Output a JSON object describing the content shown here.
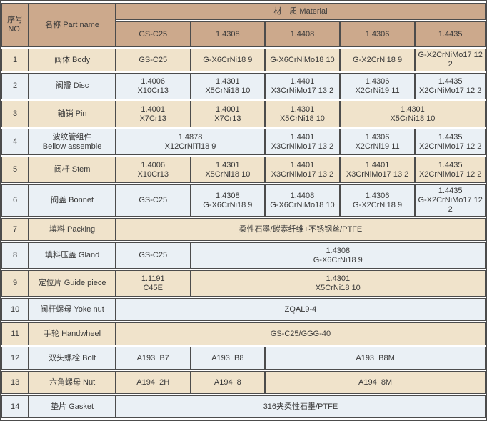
{
  "table": {
    "colors": {
      "header_bg": "#cca98c",
      "row_cream": "#f0e3cb",
      "row_light": "#eaf0f5",
      "border": "#4c4c4c",
      "text": "#3a3a3a"
    },
    "header": {
      "no_label": "序号NO.",
      "name_label": "名称 Part name",
      "material_label": "材　质 Material",
      "grades": [
        "GS-C25",
        "1.4308",
        "1.4408",
        "1.4306",
        "1.4435"
      ]
    },
    "rows": [
      {
        "no": "1",
        "name": "阀体 Body",
        "cells": [
          {
            "text": "GS-C25",
            "span": 1
          },
          {
            "text": "G-X6CrNi18 9",
            "span": 1
          },
          {
            "text": "G-X6CrNiMo18 10",
            "span": 1
          },
          {
            "text": "G-X2CrNi18 9",
            "span": 1
          },
          {
            "text": "G-X2CrNiMo17 12 2",
            "span": 1
          }
        ]
      },
      {
        "no": "2",
        "name": "阀瓣 Disc",
        "cells": [
          {
            "text": "1.4006\nX10Cr13",
            "span": 1
          },
          {
            "text": "1.4301\nX5CrNi18 10",
            "span": 1
          },
          {
            "text": "1.4401\nX3CrNiMo17 13 2",
            "span": 1
          },
          {
            "text": "1.4306\nX2CrNi19 11",
            "span": 1
          },
          {
            "text": "1.4435\nX2CrNiMo17 12 2",
            "span": 1
          }
        ]
      },
      {
        "no": "3",
        "name": "轴销 Pin",
        "cells": [
          {
            "text": "1.4001\nX7Cr13",
            "span": 1
          },
          {
            "text": "1.4001\nX7Cr13",
            "span": 1
          },
          {
            "text": "1.4301\nX5CrNi18 10",
            "span": 1
          },
          {
            "text": "1.4301\nX5CrNi18 10",
            "span": 2
          }
        ]
      },
      {
        "no": "4",
        "name": "波纹管组件\nBellow assemble",
        "cells": [
          {
            "text": "1.4878\nX12CrNiTi18 9",
            "span": 2
          },
          {
            "text": "1.4401\nX3CrNiMo17 13 2",
            "span": 1
          },
          {
            "text": "1.4306\nX2CrNi19 11",
            "span": 1
          },
          {
            "text": "1.4435\nX2CrNiMo17 12 2",
            "span": 1
          }
        ]
      },
      {
        "no": "5",
        "name": "阀杆 Stem",
        "cells": [
          {
            "text": "1.4006\nX10Cr13",
            "span": 1
          },
          {
            "text": "1.4301\nX5CrNi18 10",
            "span": 1
          },
          {
            "text": "1.4401\nX3CrNiMo17 13 2",
            "span": 1
          },
          {
            "text": "1.4401\nX3CrNiMo17 13 2",
            "span": 1
          },
          {
            "text": "1.4435\nX2CrNiMo17 12 2",
            "span": 1
          }
        ]
      },
      {
        "no": "6",
        "name": "阀盖 Bonnet",
        "cells": [
          {
            "text": "GS-C25",
            "span": 1
          },
          {
            "text": "1.4308\nG-X6CrNi18 9",
            "span": 1
          },
          {
            "text": "1.4408\nG-X6CrNiMo18 10",
            "span": 1
          },
          {
            "text": "1.4306\nG-X2CrNi18 9",
            "span": 1
          },
          {
            "text": "1.4435\nG-X2CrNiMo17 12 2",
            "span": 1
          }
        ]
      },
      {
        "no": "7",
        "name": "填料 Packing",
        "cells": [
          {
            "text": "柔性石墨/碳素纤维+不锈钢丝/PTFE",
            "span": 5
          }
        ]
      },
      {
        "no": "8",
        "name": "填料压盖 Gland",
        "cells": [
          {
            "text": "GS-C25",
            "span": 1
          },
          {
            "text": "1.4308\nG-X6CrNi18 9",
            "span": 4
          }
        ]
      },
      {
        "no": "9",
        "name": "定位片 Guide piece",
        "cells": [
          {
            "text": "1.1191\nC45E",
            "span": 1
          },
          {
            "text": "1.4301\nX5CrNi18 10",
            "span": 4
          }
        ]
      },
      {
        "no": "10",
        "name": "阀杆螺母 Yoke nut",
        "cells": [
          {
            "text": "ZQAL9-4",
            "span": 5
          }
        ]
      },
      {
        "no": "11",
        "name": "手轮 Handwheel",
        "cells": [
          {
            "text": "GS-C25/GGG-40",
            "span": 5
          }
        ]
      },
      {
        "no": "12",
        "name": "双头螺栓 Bolt",
        "cells": [
          {
            "text": "A193  B7",
            "span": 1
          },
          {
            "text": "A193  B8",
            "span": 1
          },
          {
            "text": "A193  B8M",
            "span": 3
          }
        ]
      },
      {
        "no": "13",
        "name": "六角螺母 Nut",
        "cells": [
          {
            "text": "A194  2H",
            "span": 1
          },
          {
            "text": "A194  8",
            "span": 1
          },
          {
            "text": "A194  8M",
            "span": 3
          }
        ]
      },
      {
        "no": "14",
        "name": "垫片 Gasket",
        "cells": [
          {
            "text": "316夹柔性石墨/PTFE",
            "span": 5
          }
        ]
      }
    ]
  }
}
